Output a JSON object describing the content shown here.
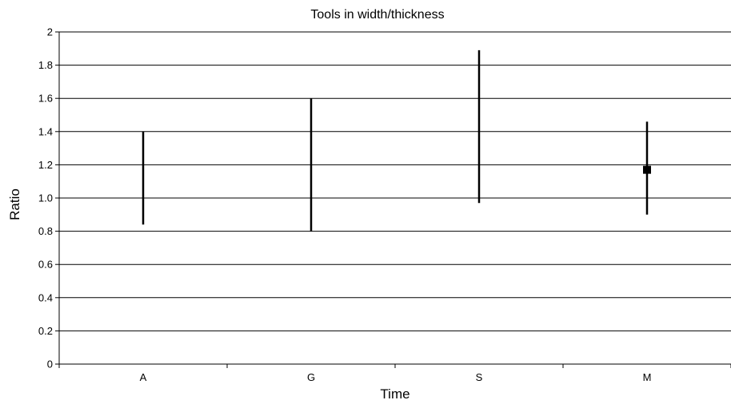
{
  "chart_data": {
    "type": "range",
    "title": "Tools in width/thickness",
    "xlabel": "Time",
    "ylabel": "Ratio",
    "categories": [
      "A",
      "G",
      "S",
      "M"
    ],
    "ylim": [
      0,
      2
    ],
    "yticks": [
      "0",
      "0.2",
      "0.4",
      "0.6",
      "0.8",
      "1.0",
      "1.2",
      "1.4",
      "1.6",
      "1.8",
      "2"
    ],
    "ytick_values": [
      0,
      0.2,
      0.4,
      0.6,
      0.8,
      1.0,
      1.2,
      1.4,
      1.6,
      1.8,
      2
    ],
    "grid": true,
    "series": [
      {
        "low": [
          0.84,
          0.8,
          0.97,
          0.9
        ],
        "high": [
          1.4,
          1.6,
          1.89,
          1.46
        ],
        "mean": [
          null,
          null,
          null,
          1.17
        ]
      }
    ]
  }
}
